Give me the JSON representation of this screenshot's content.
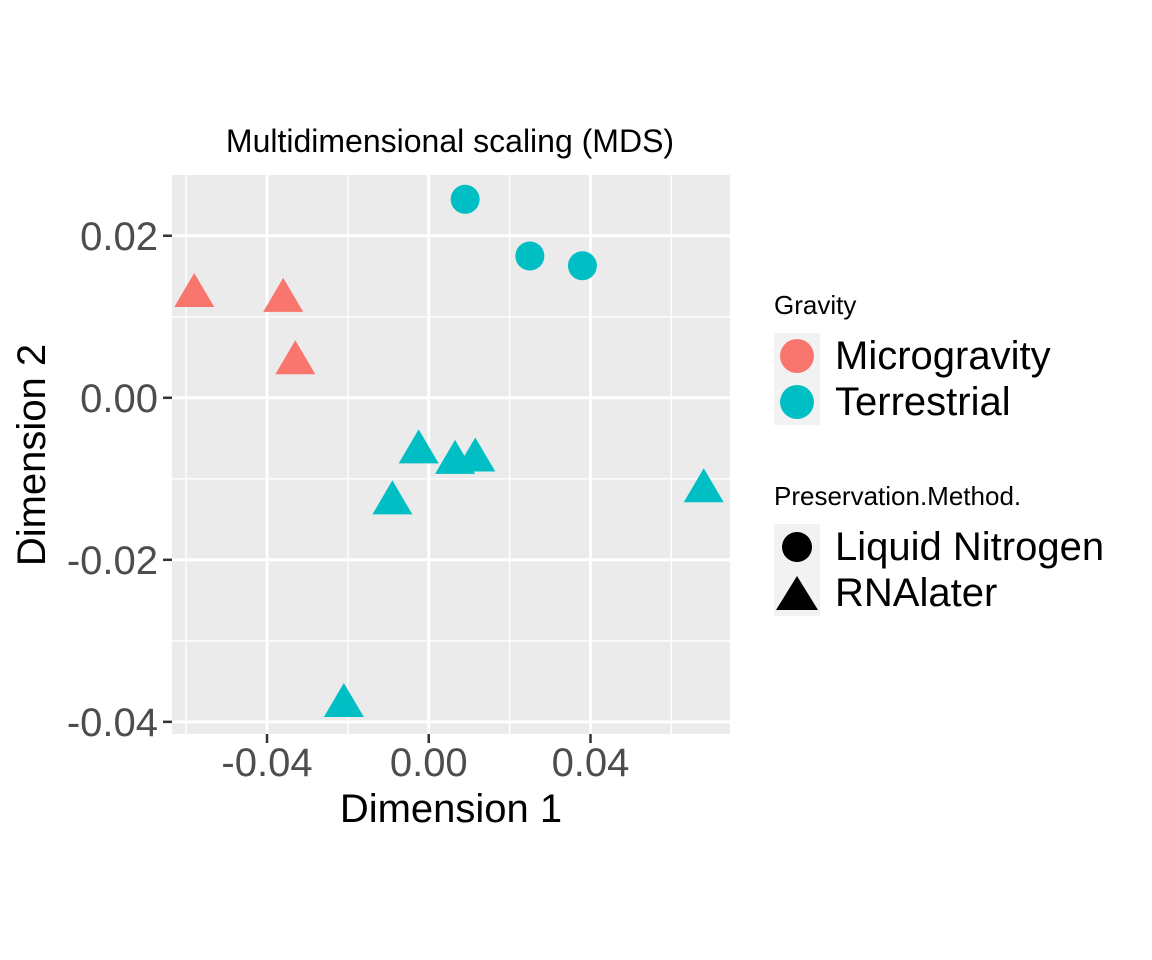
{
  "chart_data": {
    "type": "scatter",
    "title": "Multidimensional scaling (MDS)",
    "xlabel": "Dimension 1",
    "ylabel": "Dimension 2",
    "xlim": [
      -0.0635,
      0.0745
    ],
    "ylim": [
      -0.0415,
      0.0275
    ],
    "xticks": [
      -0.04,
      0.0,
      0.04
    ],
    "xtick_labels": [
      "-0.04",
      "0.00",
      "0.04"
    ],
    "yticks": [
      -0.04,
      -0.02,
      0.0,
      0.02
    ],
    "ytick_labels": [
      "-0.04",
      "-0.02",
      "0.00",
      "0.02"
    ],
    "grid": true,
    "legend_position": "right",
    "color_legend": {
      "title": "Gravity",
      "entries": [
        {
          "label": "Microgravity",
          "color": "#F8766D"
        },
        {
          "label": "Terrestrial",
          "color": "#00BFC4"
        }
      ]
    },
    "shape_legend": {
      "title": "Preservation.Method.",
      "entries": [
        {
          "label": "Liquid Nitrogen",
          "shape": "circle"
        },
        {
          "label": "RNAlater",
          "shape": "triangle"
        }
      ]
    },
    "points": [
      {
        "x": 0.009,
        "y": 0.0245,
        "gravity": "Terrestrial",
        "method": "Liquid Nitrogen"
      },
      {
        "x": 0.025,
        "y": 0.0175,
        "gravity": "Terrestrial",
        "method": "Liquid Nitrogen"
      },
      {
        "x": 0.038,
        "y": 0.0163,
        "gravity": "Terrestrial",
        "method": "Liquid Nitrogen"
      },
      {
        "x": -0.058,
        "y": 0.0128,
        "gravity": "Microgravity",
        "method": "RNAlater"
      },
      {
        "x": -0.036,
        "y": 0.0122,
        "gravity": "Microgravity",
        "method": "RNAlater"
      },
      {
        "x": -0.033,
        "y": 0.0045,
        "gravity": "Microgravity",
        "method": "RNAlater"
      },
      {
        "x": -0.0025,
        "y": -0.0065,
        "gravity": "Terrestrial",
        "method": "RNAlater"
      },
      {
        "x": 0.0065,
        "y": -0.0078,
        "gravity": "Terrestrial",
        "method": "RNAlater"
      },
      {
        "x": 0.0115,
        "y": -0.0075,
        "gravity": "Terrestrial",
        "method": "RNAlater"
      },
      {
        "x": -0.009,
        "y": -0.0128,
        "gravity": "Terrestrial",
        "method": "RNAlater"
      },
      {
        "x": 0.068,
        "y": -0.0113,
        "gravity": "Terrestrial",
        "method": "RNAlater"
      },
      {
        "x": -0.021,
        "y": -0.0378,
        "gravity": "Terrestrial",
        "method": "RNAlater"
      }
    ]
  }
}
